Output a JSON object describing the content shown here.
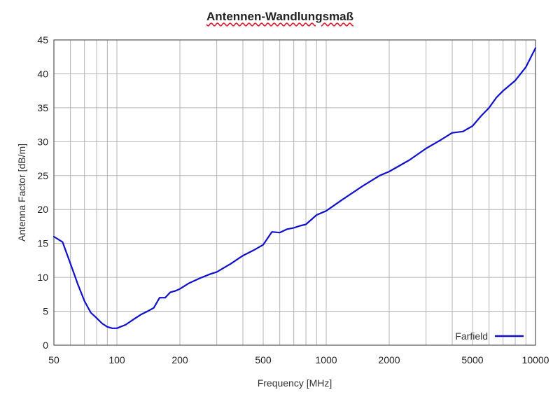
{
  "chart_data": {
    "type": "line",
    "title": "Antennen-Wandlungsmaß",
    "xlabel": "Frequency [MHz]",
    "ylabel": "Antenna Factor [dB/m]",
    "x_scale": "log",
    "xlim": [
      50,
      10000
    ],
    "ylim": [
      0,
      45
    ],
    "x_ticks": [
      50,
      100,
      200,
      500,
      1000,
      2000,
      5000,
      10000
    ],
    "x_tick_labels": [
      "50",
      "100",
      "200",
      "500",
      "1000",
      "2000",
      "5000",
      "10000"
    ],
    "y_ticks": [
      0,
      5,
      10,
      15,
      20,
      25,
      30,
      35,
      40,
      45
    ],
    "y_tick_labels": [
      "0",
      "5",
      "10",
      "15",
      "20",
      "25",
      "30",
      "35",
      "40",
      "45"
    ],
    "grid": true,
    "legend_position": "bottom-right",
    "series": [
      {
        "name": "Farfield",
        "color": "#1010cc",
        "x": [
          50,
          55,
          60,
          65,
          70,
          75,
          80,
          85,
          90,
          95,
          100,
          110,
          120,
          130,
          140,
          150,
          160,
          170,
          180,
          190,
          200,
          220,
          250,
          280,
          300,
          350,
          400,
          450,
          500,
          550,
          600,
          650,
          700,
          750,
          800,
          900,
          1000,
          1200,
          1500,
          1800,
          2000,
          2500,
          3000,
          3500,
          4000,
          4500,
          5000,
          5500,
          6000,
          6500,
          7000,
          8000,
          9000,
          10000
        ],
        "y": [
          16.0,
          15.2,
          12.0,
          9.0,
          6.5,
          4.8,
          4.0,
          3.2,
          2.7,
          2.5,
          2.5,
          3.0,
          3.8,
          4.5,
          5.0,
          5.5,
          7.0,
          7.0,
          7.8,
          8.0,
          8.3,
          9.1,
          9.9,
          10.5,
          10.8,
          12.0,
          13.2,
          14.0,
          14.8,
          16.7,
          16.6,
          17.1,
          17.3,
          17.6,
          17.8,
          19.2,
          19.8,
          21.5,
          23.5,
          25.0,
          25.6,
          27.3,
          29.0,
          30.2,
          31.3,
          31.5,
          32.3,
          33.8,
          35.0,
          36.5,
          37.5,
          39.0,
          41.0,
          43.8
        ]
      }
    ]
  }
}
